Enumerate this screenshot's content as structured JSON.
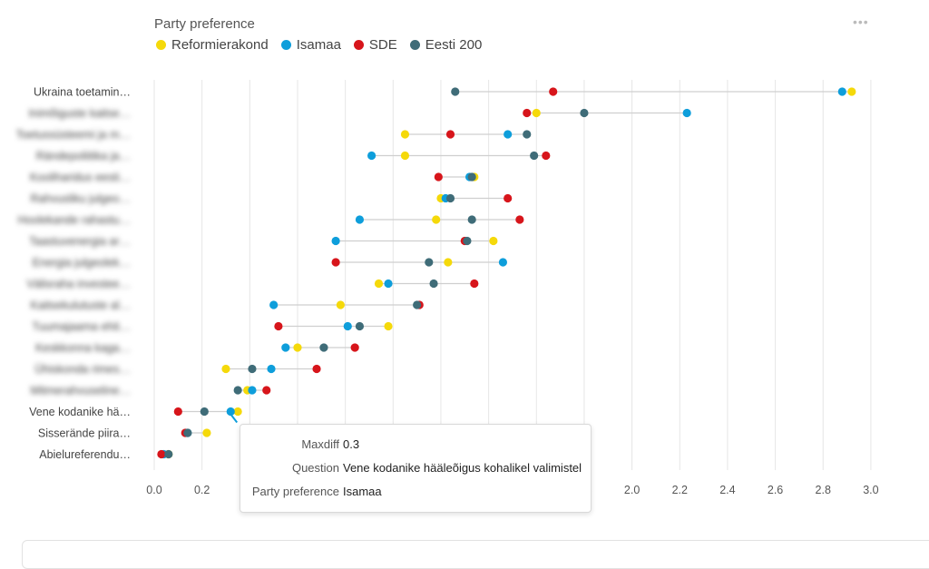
{
  "legend": {
    "title": "Party preference",
    "items": [
      {
        "name": "Reformierakond",
        "color": "#F5D90A"
      },
      {
        "name": "Isamaa",
        "color": "#0E9EDB"
      },
      {
        "name": "SDE",
        "color": "#D7151B"
      },
      {
        "name": "Eesti 200",
        "color": "#3F6C78"
      }
    ]
  },
  "menu_icon": "more-horizontal-icon",
  "tooltip": {
    "maxdiff_label": "Maxdiff",
    "maxdiff_value": "0.3",
    "question_label": "Question",
    "question_value": "Vene kodanike hääleõigus kohalikel valimistel",
    "party_label": "Party preference",
    "party_value": "Isamaa"
  },
  "chart_data": {
    "type": "dumbbell",
    "xlim": [
      0,
      3.0
    ],
    "xticks": [
      "0.0",
      "0.2",
      "0.4",
      "0.6",
      "0.8",
      "1.0",
      "1.2",
      "1.4",
      "1.6",
      "1.8",
      "2.0",
      "2.2",
      "2.4",
      "2.6",
      "2.8",
      "3.0"
    ],
    "grid": true,
    "legend_position": "top-left",
    "series_colors": {
      "Reformierakond": "#F5D90A",
      "Isamaa": "#0E9EDB",
      "SDE": "#D7151B",
      "Eesti 200": "#3F6C78"
    },
    "rows": [
      {
        "label": "Ukraina toetamin…",
        "blurred": false,
        "values": {
          "Reformierakond": 2.92,
          "Isamaa": 2.88,
          "SDE": 1.67,
          "Eesti 200": 1.26
        }
      },
      {
        "label": "Inimõiguste kaitse…",
        "blurred": true,
        "values": {
          "Reformierakond": 1.6,
          "Isamaa": 2.23,
          "SDE": 1.56,
          "Eesti 200": 1.8
        }
      },
      {
        "label": "Toetussüsteemi ja m…",
        "blurred": true,
        "values": {
          "Reformierakond": 1.05,
          "Isamaa": 1.48,
          "SDE": 1.24,
          "Eesti 200": 1.56
        }
      },
      {
        "label": "Rändepoliitika ja…",
        "blurred": true,
        "values": {
          "Reformierakond": 1.05,
          "Isamaa": 0.91,
          "SDE": 1.64,
          "Eesti 200": 1.59
        }
      },
      {
        "label": "Kooliharidus eesti…",
        "blurred": true,
        "values": {
          "Reformierakond": 1.34,
          "Isamaa": 1.32,
          "SDE": 1.19,
          "Eesti 200": 1.33
        }
      },
      {
        "label": "Rahvusliku julgeo…",
        "blurred": true,
        "values": {
          "Reformierakond": 1.2,
          "Isamaa": 1.22,
          "SDE": 1.48,
          "Eesti 200": 1.24
        }
      },
      {
        "label": "Hoolekande rahastu…",
        "blurred": true,
        "values": {
          "Reformierakond": 1.18,
          "Isamaa": 0.86,
          "SDE": 1.53,
          "Eesti 200": 1.33
        }
      },
      {
        "label": "Taastuvenergia ar…",
        "blurred": true,
        "values": {
          "Reformierakond": 1.42,
          "Isamaa": 0.76,
          "SDE": 1.3,
          "Eesti 200": 1.31
        }
      },
      {
        "label": "Energia julgeolek…",
        "blurred": true,
        "values": {
          "Reformierakond": 1.23,
          "Isamaa": 1.46,
          "SDE": 0.76,
          "Eesti 200": 1.15
        }
      },
      {
        "label": "Välisraha investee…",
        "blurred": true,
        "values": {
          "Reformierakond": 0.94,
          "Isamaa": 0.98,
          "SDE": 1.34,
          "Eesti 200": 1.17
        }
      },
      {
        "label": "Kaitsekulutuste al…",
        "blurred": true,
        "values": {
          "Reformierakond": 0.78,
          "Isamaa": 0.5,
          "SDE": 1.11,
          "Eesti 200": 1.1
        }
      },
      {
        "label": "Tuumajaama ehit…",
        "blurred": true,
        "values": {
          "Reformierakond": 0.98,
          "Isamaa": 0.81,
          "SDE": 0.52,
          "Eesti 200": 0.86
        }
      },
      {
        "label": "Keskkonna kaga…",
        "blurred": true,
        "values": {
          "Reformierakond": 0.6,
          "Isamaa": 0.55,
          "SDE": 0.84,
          "Eesti 200": 0.71
        }
      },
      {
        "label": "Ühiskonda rimes…",
        "blurred": true,
        "values": {
          "Reformierakond": 0.3,
          "Isamaa": 0.49,
          "SDE": 0.68,
          "Eesti 200": 0.41
        }
      },
      {
        "label": "Mitmerahvuseline…",
        "blurred": true,
        "values": {
          "Reformierakond": 0.39,
          "Isamaa": 0.41,
          "SDE": 0.47,
          "Eesti 200": 0.35
        }
      },
      {
        "label": "Vene kodanike hä…",
        "blurred": false,
        "values": {
          "Reformierakond": 0.35,
          "Isamaa": 0.32,
          "SDE": 0.1,
          "Eesti 200": 0.21
        }
      },
      {
        "label": "Sisserände piira…",
        "blurred": false,
        "values": {
          "Reformierakond": 0.22,
          "Isamaa": 0.14,
          "SDE": 0.13,
          "Eesti 200": 0.14
        }
      },
      {
        "label": "Abielureferendu…",
        "blurred": false,
        "values": {
          "Reformierakond": 0.06,
          "Isamaa": 0.04,
          "SDE": 0.03,
          "Eesti 200": 0.06
        }
      }
    ]
  }
}
